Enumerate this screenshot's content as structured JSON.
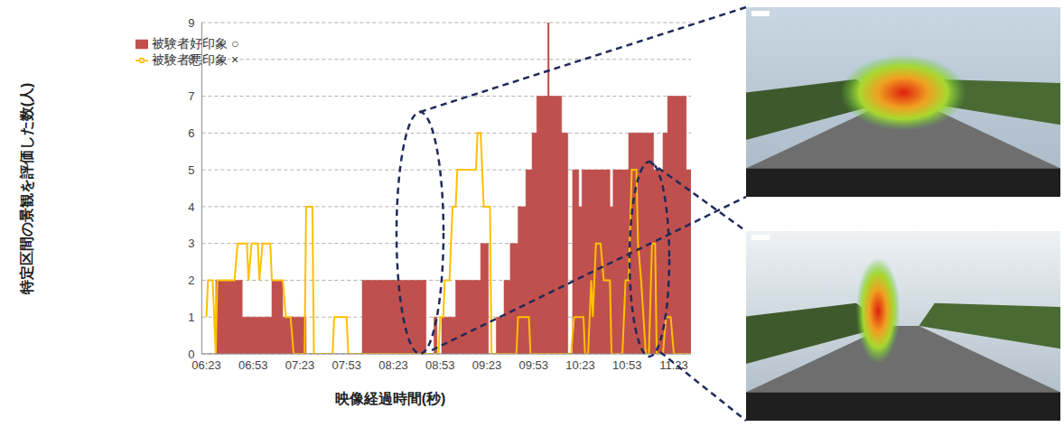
{
  "chart_data": {
    "type": "composed",
    "x_label": "映像経過時間(秒)",
    "y_label": "特定区間の景観を評価した数(人)",
    "xlim": [
      380,
      694
    ],
    "xticks": [
      {
        "value": 383,
        "label": "06:23"
      },
      {
        "value": 413,
        "label": "06:53"
      },
      {
        "value": 443,
        "label": "07:23"
      },
      {
        "value": 473,
        "label": "07:53"
      },
      {
        "value": 503,
        "label": "08:23"
      },
      {
        "value": 533,
        "label": "08:53"
      },
      {
        "value": 563,
        "label": "09:23"
      },
      {
        "value": 593,
        "label": "09:53"
      },
      {
        "value": 623,
        "label": "10:23"
      },
      {
        "value": 653,
        "label": "10:53"
      },
      {
        "value": 683,
        "label": "11:23"
      }
    ],
    "ylim": [
      0,
      9
    ],
    "yticks": [
      0,
      1,
      2,
      3,
      4,
      5,
      6,
      7,
      8,
      9
    ],
    "grid": true,
    "legend": "upper left",
    "series": [
      {
        "name": "被験者好印象 ○",
        "color": "#c0504d",
        "type": "area",
        "line_style": "step",
        "x": [
          383,
          389,
          406,
          425,
          432,
          447,
          483,
          524,
          529,
          531,
          534,
          543,
          559,
          564,
          569,
          574,
          578,
          583,
          588,
          592,
          595,
          602,
          603,
          611,
          615,
          618,
          622,
          624,
          642,
          644,
          654,
          670,
          676,
          679,
          691,
          694
        ],
        "values": [
          0,
          2,
          1,
          2,
          1,
          0,
          2,
          0,
          1,
          0,
          1,
          2,
          3,
          0,
          1,
          2,
          3,
          4,
          5,
          6,
          7,
          9,
          7,
          6,
          0,
          5,
          4,
          5,
          4,
          5,
          6,
          5,
          6,
          7,
          5,
          5
        ]
      },
      {
        "name": "被験者悪印象 ×",
        "color": "#ffc000",
        "type": "line",
        "line_style": "solid",
        "x": [
          383,
          384,
          387,
          389,
          390,
          401,
          403,
          409,
          410,
          412,
          416,
          417,
          419,
          424,
          425,
          432,
          434,
          437,
          439,
          446,
          447,
          451,
          452,
          464,
          465,
          473,
          474,
          532,
          533,
          535,
          536,
          539,
          540,
          541,
          543,
          544,
          556,
          557,
          559,
          560,
          561,
          565,
          566,
          582,
          583,
          590,
          591,
          617,
          619,
          625,
          626,
          628,
          630,
          631,
          633,
          636,
          638,
          642,
          643,
          650,
          652,
          654,
          656,
          659,
          660,
          662,
          665,
          667,
          669,
          671,
          672,
          676,
          678,
          681,
          683,
          694
        ],
        "values": [
          1,
          2,
          2,
          0,
          2,
          2,
          3,
          3,
          2,
          3,
          3,
          2,
          3,
          3,
          2,
          2,
          1,
          1,
          0,
          0,
          4,
          4,
          0,
          0,
          1,
          1,
          0,
          0,
          1,
          1,
          2,
          2,
          3,
          4,
          4,
          5,
          5,
          6,
          6,
          5,
          4,
          4,
          0,
          0,
          1,
          1,
          0,
          0,
          1,
          1,
          0,
          0,
          2,
          1,
          3,
          3,
          2,
          2,
          0,
          0,
          2,
          2,
          5,
          5,
          3,
          2,
          0,
          0,
          3,
          3,
          0,
          0,
          1,
          1,
          0,
          0
        ]
      }
    ]
  }
}
